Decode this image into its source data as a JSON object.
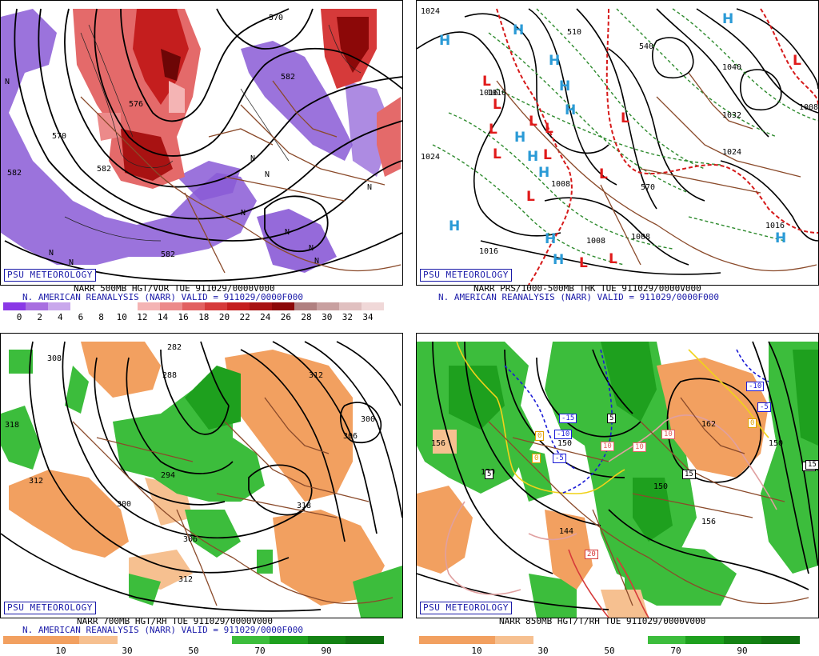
{
  "panels": [
    {
      "id": "vort500",
      "badge": "PSU METEOROLOGY",
      "line1": "NARR 500MB HGT/VOR TUE 911029/0000V000",
      "line2": "N. AMERICAN REANALYSIS (NARR) VALID = 911029/0000F000",
      "colorbar": {
        "colors": [
          "#8a38e6",
          "#a86ee0",
          "#c9a8ec",
          "#ffffff",
          "#ffffff",
          "#ffffff",
          "#f4b4b4",
          "#ec8a8a",
          "#e26060",
          "#d63a3a",
          "#c41e1e",
          "#a81212",
          "#8c0808",
          "#b08080",
          "#c8a0a0",
          "#e0c0c0",
          "#f0d8d8"
        ],
        "ticks": [
          "0",
          "2",
          "4",
          "6",
          "8",
          "10",
          "12",
          "14",
          "16",
          "18",
          "20",
          "22",
          "24",
          "26",
          "28",
          "30",
          "32",
          "34"
        ]
      },
      "labels": [
        "570",
        "582",
        "582",
        "582",
        "576",
        "582",
        "570",
        "N",
        "N",
        "N",
        "N",
        "N",
        "N",
        "N",
        "N",
        "N",
        "N"
      ]
    },
    {
      "id": "thk",
      "badge": "PSU METEOROLOGY",
      "line1": "NARR PRS/1000-500MB THK TUE 911029/0000V000",
      "line2": "N. AMERICAN REANALYSIS (NARR) VALID = 911029/0000F000",
      "labels": [
        "1016",
        "1024",
        "1024",
        "1016",
        "1008",
        "1008",
        "1008",
        "1016",
        "1032",
        "1040",
        "1008",
        "570",
        "510",
        "540",
        "1024",
        "1016"
      ],
      "highs": [
        "H",
        "H",
        "H",
        "H",
        "H",
        "H",
        "H",
        "H",
        "H",
        "H",
        "H",
        "H",
        "H"
      ],
      "lows": [
        "L",
        "L",
        "L",
        "L",
        "L",
        "L",
        "L",
        "L",
        "L",
        "L",
        "L",
        "L",
        "L"
      ]
    },
    {
      "id": "rh700",
      "badge": "PSU METEOROLOGY",
      "line1": "NARR 700MB HGT/RH TUE 911029/0000V000",
      "line2": "N. AMERICAN REANALYSIS (NARR) VALID = 911029/0000F000",
      "colorbar": {
        "colors": [
          "#f2a060",
          "#f2a060",
          "#f6c090",
          "#ffffff",
          "#ffffff",
          "#ffffff",
          "#3cbd3c",
          "#1ea01e",
          "#148214",
          "#107010"
        ],
        "ticks": [
          "10",
          "30",
          "50",
          "70",
          "90"
        ]
      },
      "labels": [
        "308",
        "288",
        "312",
        "318",
        "312",
        "300",
        "306",
        "300",
        "294",
        "306",
        "318",
        "312",
        "282"
      ]
    },
    {
      "id": "temp850",
      "badge": "PSU METEOROLOGY",
      "line1": "NARR 850MB HGT/T/RH TUE 911029/0000V000",
      "colorbar": {
        "colors": [
          "#f2a060",
          "#f2a060",
          "#f6c090",
          "#ffffff",
          "#ffffff",
          "#ffffff",
          "#3cbd3c",
          "#1ea01e",
          "#148214",
          "#107010"
        ],
        "ticks": [
          "10",
          "30",
          "50",
          "70",
          "90"
        ]
      },
      "labels": [
        "156",
        "150",
        "162",
        "150",
        "156",
        "144",
        "150",
        "144",
        "150"
      ],
      "boxes": [
        "-15",
        "-10",
        "-5",
        "5",
        "10",
        "0",
        "0",
        "5",
        "10",
        "15",
        "15",
        "10",
        "20",
        "-10",
        "-5",
        "0",
        "15"
      ]
    }
  ]
}
